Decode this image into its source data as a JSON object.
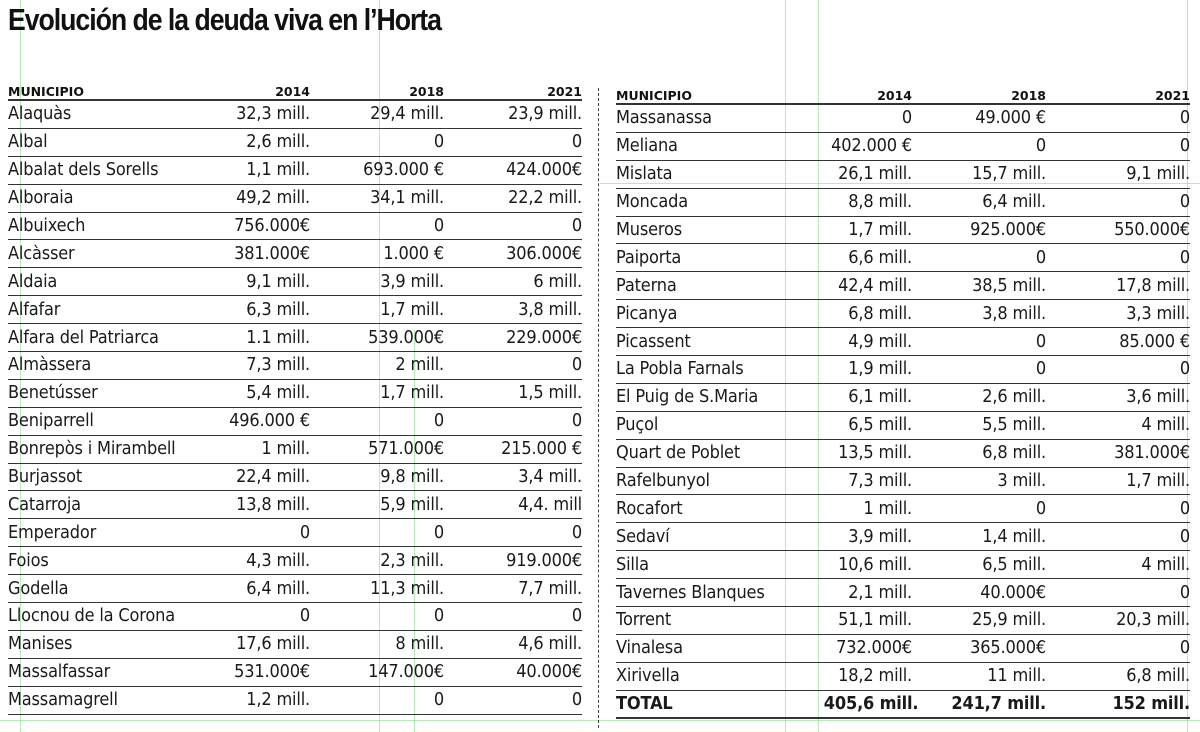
{
  "title": "Evolución de la deuda viva en l’Horta",
  "columns": [
    "MUNICIPIO",
    "2014",
    "2018",
    "2021"
  ],
  "left_table": {
    "rows": [
      {
        "municipio": "Alaquàs",
        "y2014": "32,3 mill.",
        "y2018": "29,4 mill.",
        "y2021": "23,9 mill."
      },
      {
        "municipio": "Albal",
        "y2014": "2,6 mill.",
        "y2018": "0",
        "y2021": "0"
      },
      {
        "municipio": "Albalat dels Sorells",
        "y2014": "1,1 mill.",
        "y2018": "693.000 €",
        "y2021": "424.000€"
      },
      {
        "municipio": "Alboraia",
        "y2014": "49,2 mill.",
        "y2018": "34,1 mill.",
        "y2021": "22,2 mill."
      },
      {
        "municipio": "Albuixech",
        "y2014": "756.000€",
        "y2018": "0",
        "y2021": "0"
      },
      {
        "municipio": "Alcàsser",
        "y2014": "381.000€",
        "y2018": "1.000 €",
        "y2021": "306.000€"
      },
      {
        "municipio": "Aldaia",
        "y2014": "9,1 mill.",
        "y2018": "3,9 mill.",
        "y2021": "6 mill."
      },
      {
        "municipio": "Alfafar",
        "y2014": "6,3 mill.",
        "y2018": "1,7 mill.",
        "y2021": "3,8 mill."
      },
      {
        "municipio": "Alfara del Patriarca",
        "y2014": "1.1 mill.",
        "y2018": "539.000€",
        "y2021": "229.000€"
      },
      {
        "municipio": "Almàssera",
        "y2014": "7,3 mill.",
        "y2018": "2 mill.",
        "y2021": "0"
      },
      {
        "municipio": "Benetússer",
        "y2014": "5,4 mill.",
        "y2018": "1,7 mill.",
        "y2021": "1,5 mill."
      },
      {
        "municipio": "Beniparrell",
        "y2014": "496.000 €",
        "y2018": "0",
        "y2021": "0"
      },
      {
        "municipio": "Bonrepòs i Mirambell",
        "y2014": "1 mill.",
        "y2018": "571.000€",
        "y2021": "215.000 €"
      },
      {
        "municipio": "Burjassot",
        "y2014": "22,4 mill.",
        "y2018": "9,8 mill.",
        "y2021": "3,4 mill."
      },
      {
        "municipio": "Catarroja",
        "y2014": "13,8 mill.",
        "y2018": "5,9 mill.",
        "y2021": "4,4. mill"
      },
      {
        "municipio": "Emperador",
        "y2014": "0",
        "y2018": "0",
        "y2021": "0"
      },
      {
        "municipio": "Foios",
        "y2014": "4,3 mill.",
        "y2018": "2,3 mill.",
        "y2021": "919.000€"
      },
      {
        "municipio": "Godella",
        "y2014": "6,4 mill.",
        "y2018": "11,3 mill.",
        "y2021": "7,7 mill."
      },
      {
        "municipio": "Llocnou de la Corona",
        "y2014": "0",
        "y2018": "0",
        "y2021": "0"
      },
      {
        "municipio": "Manises",
        "y2014": "17,6 mill.",
        "y2018": "8 mill.",
        "y2021": "4,6 mill."
      },
      {
        "municipio": "Massalfassar",
        "y2014": "531.000€",
        "y2018": "147.000€",
        "y2021": "40.000€"
      },
      {
        "municipio": "Massamagrell",
        "y2014": "1,2 mill.",
        "y2018": "0",
        "y2021": "0"
      }
    ]
  },
  "right_table": {
    "rows": [
      {
        "municipio": "Massanassa",
        "y2014": "0",
        "y2018": "49.000 €",
        "y2021": "0"
      },
      {
        "municipio": "Meliana",
        "y2014": "402.000 €",
        "y2018": "0",
        "y2021": "0"
      },
      {
        "municipio": "Mislata",
        "y2014": "26,1 mill.",
        "y2018": "15,7 mill.",
        "y2021": "9,1 mill."
      },
      {
        "municipio": "Moncada",
        "y2014": "8,8 mill.",
        "y2018": "6,4 mill.",
        "y2021": "0"
      },
      {
        "municipio": "Museros",
        "y2014": "1,7 mill.",
        "y2018": "925.000€",
        "y2021": "550.000€"
      },
      {
        "municipio": "Paiporta",
        "y2014": "6,6 mill.",
        "y2018": "0",
        "y2021": "0"
      },
      {
        "municipio": "Paterna",
        "y2014": "42,4 mill.",
        "y2018": "38,5 mill.",
        "y2021": "17,8 mill."
      },
      {
        "municipio": "Picanya",
        "y2014": "6,8 mill.",
        "y2018": "3,8 mill.",
        "y2021": "3,3 mill."
      },
      {
        "municipio": "Picassent",
        "y2014": "4,9 mill.",
        "y2018": "0",
        "y2021": "85.000 €"
      },
      {
        "municipio": "La Pobla Farnals",
        "y2014": "1,9 mill.",
        "y2018": "0",
        "y2021": "0"
      },
      {
        "municipio": "El Puig de S.Maria",
        "y2014": "6,1 mill.",
        "y2018": "2,6 mill.",
        "y2021": "3,6 mill."
      },
      {
        "municipio": "Puçol",
        "y2014": "6,5 mill.",
        "y2018": "5,5 mill.",
        "y2021": "4 mill."
      },
      {
        "municipio": "Quart de Poblet",
        "y2014": "13,5 mill.",
        "y2018": "6,8 mill.",
        "y2021": "381.000€"
      },
      {
        "municipio": "Rafelbunyol",
        "y2014": "7,3 mill.",
        "y2018": "3 mill.",
        "y2021": "1,7 mill."
      },
      {
        "municipio": "Rocafort",
        "y2014": "1 mill.",
        "y2018": "0",
        "y2021": "0"
      },
      {
        "municipio": "Sedaví",
        "y2014": "3,9 mill.",
        "y2018": "1,4 mill.",
        "y2021": "0"
      },
      {
        "municipio": "Silla",
        "y2014": "10,6 mill.",
        "y2018": "6,5 mill.",
        "y2021": "4 mill."
      },
      {
        "municipio": "Tavernes Blanques",
        "y2014": "2,1 mill.",
        "y2018": "40.000€",
        "y2021": "0"
      },
      {
        "municipio": "Torrent",
        "y2014": "51,1 mill.",
        "y2018": "25,9 mill.",
        "y2021": "20,3 mill."
      },
      {
        "municipio": "Vinalesa",
        "y2014": "732.000€",
        "y2018": "365.000€",
        "y2021": "0"
      },
      {
        "municipio": "Xirivella",
        "y2014": "18,2 mill.",
        "y2018": "11 mill.",
        "y2021": "6,8 mill."
      }
    ],
    "total": {
      "municipio": "TOTAL",
      "y2014": "405,6 mill.",
      "y2018": "241,7 mill.",
      "y2021": "152 mill."
    }
  }
}
